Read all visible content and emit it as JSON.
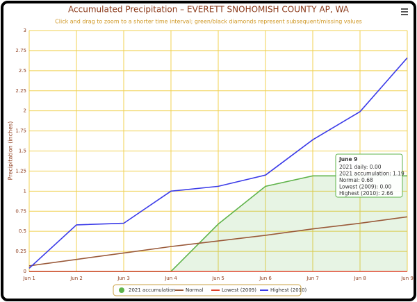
{
  "chart_data": {
    "type": "line",
    "title": "Accumulated Precipitation – EVERETT SNOHOMISH COUNTY AP, WA",
    "subtitle": "Click and drag to zoom to a shorter time interval; green/black diamonds represent subsequent/missing values",
    "y_label": "Precipitation (inches)",
    "categories": [
      "Jun 1",
      "Jun 2",
      "Jun 3",
      "Jun 4",
      "Jun 5",
      "Jun 6",
      "Jun 7",
      "Jun 8",
      "Jun 9"
    ],
    "series": [
      {
        "name": "2021 accumulation",
        "color": "#5fb34a",
        "fill": true,
        "values": [
          0,
          0,
          0,
          0,
          0.59,
          1.06,
          1.19,
          1.19,
          1.19
        ]
      },
      {
        "name": "Normal",
        "color": "#9a5a3a",
        "values": [
          0.07,
          0.15,
          0.23,
          0.31,
          0.38,
          0.45,
          0.53,
          0.6,
          0.68
        ]
      },
      {
        "name": "Lowest (2009)",
        "color": "#e0442c",
        "values": [
          0,
          0,
          0,
          0,
          0,
          0,
          0,
          0,
          0
        ]
      },
      {
        "name": "Highest (2010)",
        "color": "#3b3be8",
        "values": [
          0.04,
          0.58,
          0.6,
          1.0,
          1.06,
          1.2,
          1.64,
          1.99,
          2.66
        ]
      }
    ],
    "ylim": [
      0,
      3
    ],
    "yticks": [
      0,
      0.25,
      0.5,
      0.75,
      1,
      1.25,
      1.5,
      1.75,
      2,
      2.25,
      2.5,
      2.75,
      3
    ],
    "grid": true,
    "tooltip": {
      "title": "June 9",
      "lines": [
        "2021 daily: 0.00",
        "2021 accumulation: 1.19",
        "Normal: 0.68",
        "Lowest (2009): 0.00",
        "Highest (2010): 2.66"
      ]
    }
  }
}
